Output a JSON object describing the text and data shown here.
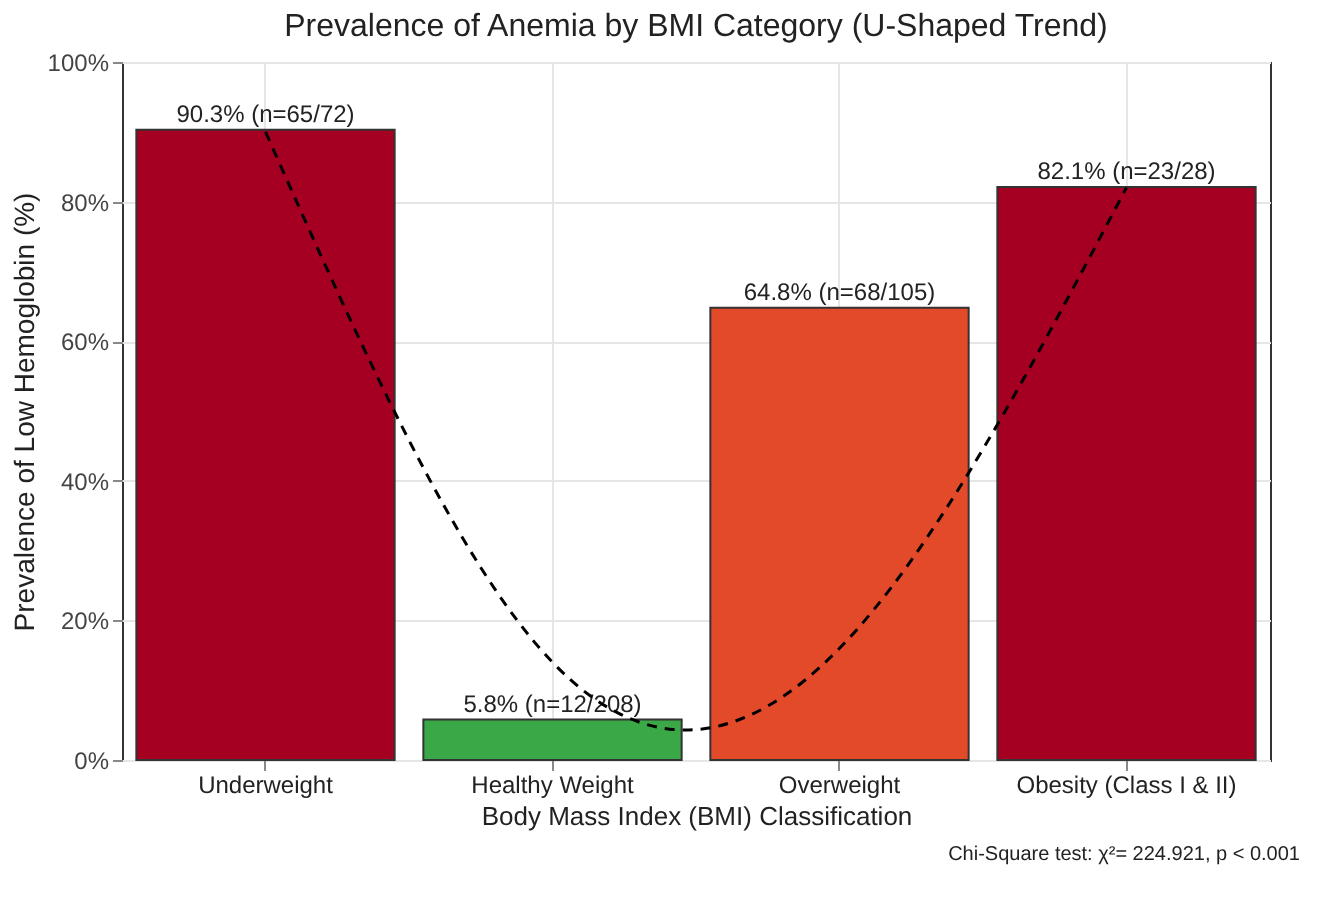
{
  "chart_data": {
    "type": "bar",
    "title": "Prevalence of Anemia by BMI Category (U-Shaped Trend)",
    "xlabel": "Body Mass Index (BMI) Classification",
    "ylabel": "Prevalence of Low Hemoglobin (%)",
    "categories": [
      "Underweight",
      "Healthy Weight",
      "Overweight",
      "Obesity (Class I & II)"
    ],
    "series": [
      {
        "colors": [
          "#a50021",
          "#3aa846",
          "#e34a2a",
          "#a50021"
        ],
        "values": [
          90.3,
          5.8,
          64.8,
          82.1
        ],
        "value_labels": [
          "90.3% (n=65/72)",
          "5.8% (n=12/208)",
          "64.8% (n=68/105)",
          "82.1% (n=23/28)"
        ]
      },
      {
        "type": "line",
        "color": "#000000",
        "line_style": "dashed",
        "x": [
          "Underweight",
          "Healthy Weight",
          "Overweight",
          "Obesity (Class I & II)"
        ],
        "values": [
          90,
          14,
          16,
          82
        ]
      }
    ],
    "ylim": [
      0,
      100
    ],
    "yticks": [
      {
        "value": 0,
        "label": "0%"
      },
      {
        "value": 20,
        "label": "20%"
      },
      {
        "value": 40,
        "label": "40%"
      },
      {
        "value": 60,
        "label": "60%"
      },
      {
        "value": 80,
        "label": "80%"
      },
      {
        "value": 100,
        "label": "100%"
      }
    ],
    "grid": true,
    "annotations": [
      "Chi-Square test: χ²= 224.921, p < 0.001"
    ]
  }
}
